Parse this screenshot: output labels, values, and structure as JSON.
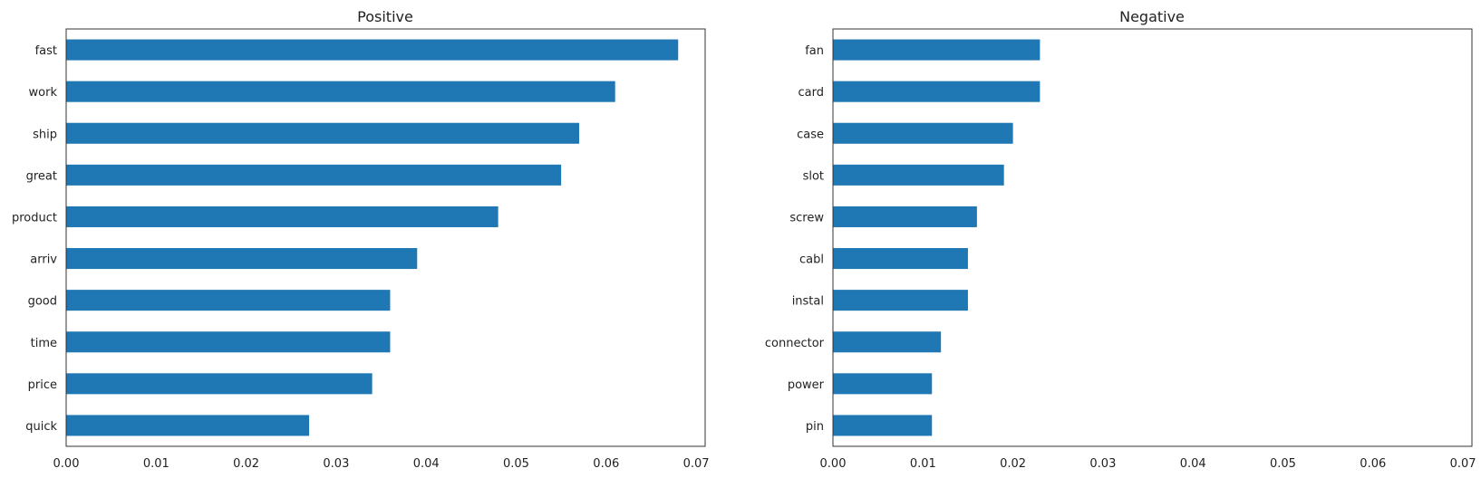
{
  "figure": {
    "bar_color": "#1f77b4",
    "axis_color": "#333333",
    "text_color": "#222222",
    "background": "#ffffff"
  },
  "chart_data": [
    {
      "type": "bar",
      "orientation": "horizontal",
      "title": "Positive",
      "xlabel": "",
      "ylabel": "",
      "xlim": [
        0,
        0.071
      ],
      "xticks": [
        0.0,
        0.01,
        0.02,
        0.03,
        0.04,
        0.05,
        0.06,
        0.07
      ],
      "xtick_labels": [
        "0.00",
        "0.01",
        "0.02",
        "0.03",
        "0.04",
        "0.05",
        "0.06",
        "0.07"
      ],
      "grid": false,
      "categories": [
        "fast",
        "work",
        "ship",
        "great",
        "product",
        "arriv",
        "good",
        "time",
        "price",
        "quick"
      ],
      "values": [
        0.068,
        0.061,
        0.057,
        0.055,
        0.048,
        0.039,
        0.036,
        0.036,
        0.034,
        0.027
      ]
    },
    {
      "type": "bar",
      "orientation": "horizontal",
      "title": "Negative",
      "xlabel": "",
      "ylabel": "",
      "xlim": [
        0,
        0.071
      ],
      "xticks": [
        0.0,
        0.01,
        0.02,
        0.03,
        0.04,
        0.05,
        0.06,
        0.07
      ],
      "xtick_labels": [
        "0.00",
        "0.01",
        "0.02",
        "0.03",
        "0.04",
        "0.05",
        "0.06",
        "0.07"
      ],
      "grid": false,
      "categories": [
        "fan",
        "card",
        "case",
        "slot",
        "screw",
        "cabl",
        "instal",
        "connector",
        "power",
        "pin"
      ],
      "values": [
        0.023,
        0.023,
        0.02,
        0.019,
        0.016,
        0.015,
        0.015,
        0.012,
        0.011,
        0.011
      ]
    }
  ]
}
